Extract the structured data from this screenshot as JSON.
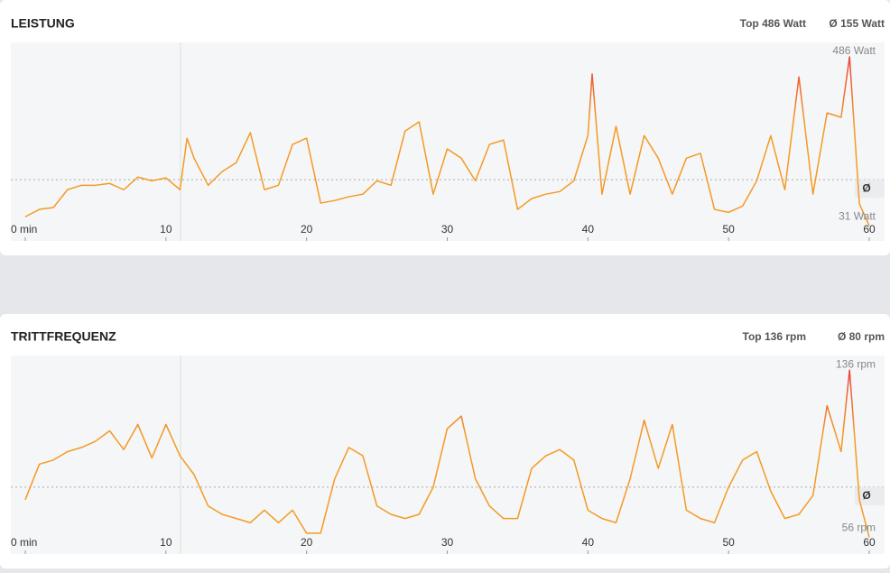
{
  "chart_data": [
    {
      "type": "line",
      "title": "LEISTUNG",
      "stats": [
        "Top 486 Watt",
        "Ø 155 Watt"
      ],
      "x": [
        0,
        1,
        2,
        3,
        4,
        5,
        6,
        7,
        8,
        9,
        10,
        11,
        11.5,
        12,
        13,
        14,
        15,
        16,
        17,
        18,
        19,
        20,
        21,
        22,
        23,
        24,
        25,
        26,
        27,
        28,
        29,
        30,
        31,
        32,
        33,
        34,
        35,
        36,
        37,
        38,
        39,
        40,
        40.3,
        41,
        42,
        43,
        44,
        45,
        46,
        47,
        48,
        49,
        50,
        51,
        52,
        53,
        54,
        55,
        56,
        57,
        58,
        58.6,
        59.3,
        60
      ],
      "series": [
        {
          "name": "Leistung",
          "color": "#f59a23",
          "peak_color": "#e8443a",
          "values": [
            55,
            75,
            80,
            128,
            140,
            140,
            145,
            128,
            162,
            152,
            160,
            128,
            267,
            213,
            140,
            177,
            201,
            282,
            128,
            140,
            250,
            267,
            92,
            99,
            109,
            116,
            152,
            140,
            286,
            311,
            116,
            238,
            213,
            152,
            250,
            262,
            75,
            104,
            116,
            123,
            152,
            274,
            440,
            116,
            299,
            116,
            274,
            213,
            116,
            213,
            226,
            75,
            67,
            84,
            152,
            274,
            128,
            432,
            116,
            335,
            323,
            486,
            90,
            31
          ]
        }
      ],
      "xlim": [
        0,
        60
      ],
      "xticks": [
        {
          "value": 0,
          "label": "0 min"
        },
        10,
        20,
        30,
        40,
        50,
        60
      ],
      "ylim": [
        -10,
        525
      ],
      "annotations": [
        {
          "value": 486,
          "label": "486 Watt"
        },
        {
          "value": 31,
          "label": "31 Watt"
        }
      ],
      "average": {
        "value": 155,
        "label": "Ø"
      }
    },
    {
      "type": "line",
      "title": "TRITTFREQUENZ",
      "stats": [
        "Top 136 rpm",
        "Ø 80 rpm"
      ],
      "x": [
        0,
        1,
        2,
        3,
        4,
        5,
        6,
        7,
        8,
        9,
        10,
        11,
        12,
        13,
        14,
        15,
        16,
        17,
        18,
        19,
        20,
        21,
        22,
        23,
        24,
        25,
        26,
        27,
        28,
        29,
        30,
        31,
        32,
        33,
        34,
        35,
        36,
        37,
        38,
        39,
        40,
        41,
        42,
        43,
        44,
        45,
        46,
        47,
        48,
        49,
        50,
        51,
        52,
        53,
        54,
        55,
        56,
        57,
        58,
        58.6,
        59.3,
        60
      ],
      "series": [
        {
          "name": "Trittfrequenz",
          "color": "#f59a23",
          "peak_color": "#e8443a",
          "values": [
            74,
            91,
            93,
            97,
            99,
            102,
            107,
            98,
            110,
            94,
            110,
            95,
            86,
            71,
            67,
            65,
            63,
            69,
            63,
            69,
            58,
            58,
            84,
            99,
            95,
            71,
            67,
            65,
            67,
            80,
            108,
            114,
            84,
            71,
            65,
            65,
            89,
            95,
            98,
            93,
            69,
            65,
            63,
            84,
            112,
            89,
            110,
            69,
            65,
            63,
            80,
            93,
            97,
            78,
            65,
            67,
            76,
            119,
            97,
            136,
            74,
            56
          ]
        }
      ],
      "xlim": [
        0,
        60
      ],
      "xticks": [
        {
          "value": 0,
          "label": "0 min"
        },
        10,
        20,
        30,
        40,
        50,
        60
      ],
      "ylim": [
        48,
        143
      ],
      "annotations": [
        {
          "value": 136,
          "label": "136 rpm"
        },
        {
          "value": 56,
          "label": "56 rpm"
        }
      ],
      "average": {
        "value": 80,
        "label": "Ø"
      }
    }
  ]
}
